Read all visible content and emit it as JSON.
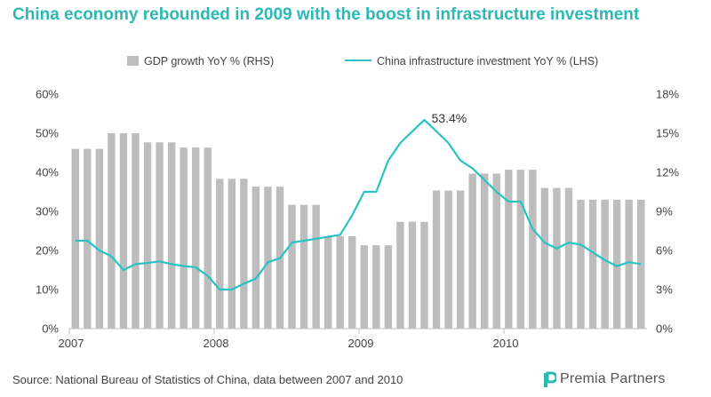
{
  "title": "China economy rebounded in 2009 with the boost in infrastructure investment",
  "source": "Source: National Bureau of Statistics of China, data between 2007 and 2010",
  "logo": {
    "text": "Premia Partners",
    "icon": "premia-logo-icon"
  },
  "colors": {
    "title": "#2bb9b5",
    "bar": "#bdbdbd",
    "line": "#29c3c3",
    "axis": "#bfbfbf",
    "text": "#444444"
  },
  "chart_data": {
    "type": "bar+line",
    "legend_placement": "top",
    "x_ticks": [
      "2007",
      "2008",
      "2009",
      "2010"
    ],
    "y_left": {
      "ticks": [
        "0%",
        "10%",
        "20%",
        "30%",
        "40%",
        "50%",
        "60%"
      ],
      "lim": [
        0,
        60
      ]
    },
    "y_right": {
      "ticks": [
        "0%",
        "3%",
        "6%",
        "9%",
        "12%",
        "15%",
        "18%"
      ],
      "lim": [
        0,
        18
      ]
    },
    "grid": false,
    "bar_series": {
      "name": "GDP growth YoY % (RHS)",
      "axis": "right",
      "values": [
        13.8,
        13.8,
        13.8,
        15.0,
        15.0,
        15.0,
        14.3,
        14.3,
        14.3,
        13.9,
        13.9,
        13.9,
        11.5,
        11.5,
        11.5,
        10.9,
        10.9,
        10.9,
        9.5,
        9.5,
        9.5,
        7.1,
        7.1,
        7.1,
        6.4,
        6.4,
        6.4,
        8.2,
        8.2,
        8.2,
        10.6,
        10.6,
        10.6,
        11.9,
        11.9,
        11.9,
        12.2,
        12.2,
        12.2,
        10.8,
        10.8,
        10.8,
        9.9,
        9.9,
        9.9,
        9.9,
        9.9,
        9.9
      ]
    },
    "line_series": {
      "name": "China infrastructure investment YoY % (LHS)",
      "axis": "left",
      "values": [
        22.5,
        22.5,
        20.0,
        18.5,
        15.0,
        16.5,
        16.8,
        17.2,
        16.5,
        16.0,
        15.7,
        13.5,
        10.0,
        10.0,
        11.5,
        12.8,
        17.0,
        18.0,
        22.0,
        22.5,
        23.0,
        23.5,
        24.0,
        29.0,
        35.0,
        35.0,
        43.0,
        47.5,
        50.5,
        53.4,
        50.5,
        47.5,
        43.0,
        41.0,
        38.0,
        35.0,
        32.5,
        32.5,
        25.5,
        22.0,
        20.5,
        22.0,
        21.5,
        19.5,
        17.5,
        16.0,
        17.0,
        16.5
      ]
    },
    "annotation": {
      "text": "53.4%",
      "index": 29
    }
  }
}
